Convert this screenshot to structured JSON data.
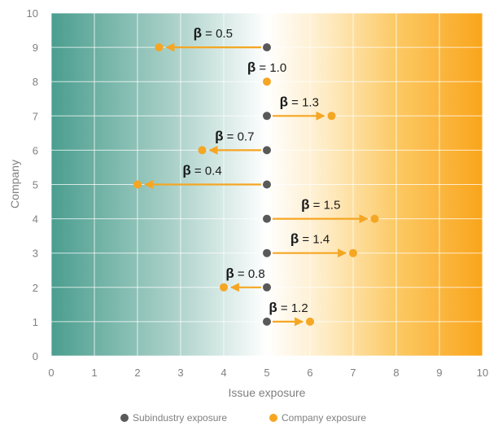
{
  "chart_data": {
    "type": "scatter",
    "title": "",
    "xlabel": "Issue exposure",
    "ylabel": "Company",
    "xlim": [
      0,
      10
    ],
    "ylim": [
      0,
      10
    ],
    "x_ticks": [
      "0",
      "1",
      "2",
      "3",
      "4",
      "5",
      "6",
      "7",
      "8",
      "9",
      "10"
    ],
    "y_ticks": [
      "0",
      "1",
      "2",
      "3",
      "4",
      "5",
      "6",
      "7",
      "8",
      "9",
      "10"
    ],
    "grid": true,
    "background": "horizontal gradient from teal (low exposure) through white at 5 to orange (high exposure)",
    "legend_position": "bottom",
    "series": [
      {
        "name": "Subindustry exposure",
        "color": "#595959",
        "points": [
          {
            "company": 1,
            "x": 5
          },
          {
            "company": 2,
            "x": 5
          },
          {
            "company": 3,
            "x": 5
          },
          {
            "company": 4,
            "x": 5
          },
          {
            "company": 5,
            "x": 5
          },
          {
            "company": 6,
            "x": 5
          },
          {
            "company": 7,
            "x": 5
          },
          {
            "company": 8,
            "x": 5
          },
          {
            "company": 9,
            "x": 5
          }
        ]
      },
      {
        "name": "Company exposure",
        "color": "#F5A623",
        "points": [
          {
            "company": 1,
            "x": 6.0
          },
          {
            "company": 2,
            "x": 4.0
          },
          {
            "company": 3,
            "x": 7.0
          },
          {
            "company": 4,
            "x": 7.5
          },
          {
            "company": 5,
            "x": 2.0
          },
          {
            "company": 6,
            "x": 3.5
          },
          {
            "company": 7,
            "x": 6.5
          },
          {
            "company": 8,
            "x": 5.0
          },
          {
            "company": 9,
            "x": 2.5
          }
        ]
      }
    ],
    "annotations": [
      {
        "company": 9,
        "symbol": "β",
        "text": " = 0.5"
      },
      {
        "company": 8,
        "symbol": "β",
        "text": " = 1.0"
      },
      {
        "company": 7,
        "symbol": "β",
        "text": " = 1.3"
      },
      {
        "company": 6,
        "symbol": "β",
        "text": " = 0.7"
      },
      {
        "company": 5,
        "symbol": "β",
        "text": " = 0.4"
      },
      {
        "company": 4,
        "symbol": "β",
        "text": " = 1.5"
      },
      {
        "company": 3,
        "symbol": "β",
        "text": " = 1.4"
      },
      {
        "company": 2,
        "symbol": "β",
        "text": " = 0.8"
      },
      {
        "company": 1,
        "symbol": "β",
        "text": " = 1.2"
      }
    ],
    "colors": {
      "teal": "#4A9E8F",
      "orange": "#F5A623",
      "subindustry_dot": "#595959",
      "arrow": "#F5A623"
    }
  }
}
